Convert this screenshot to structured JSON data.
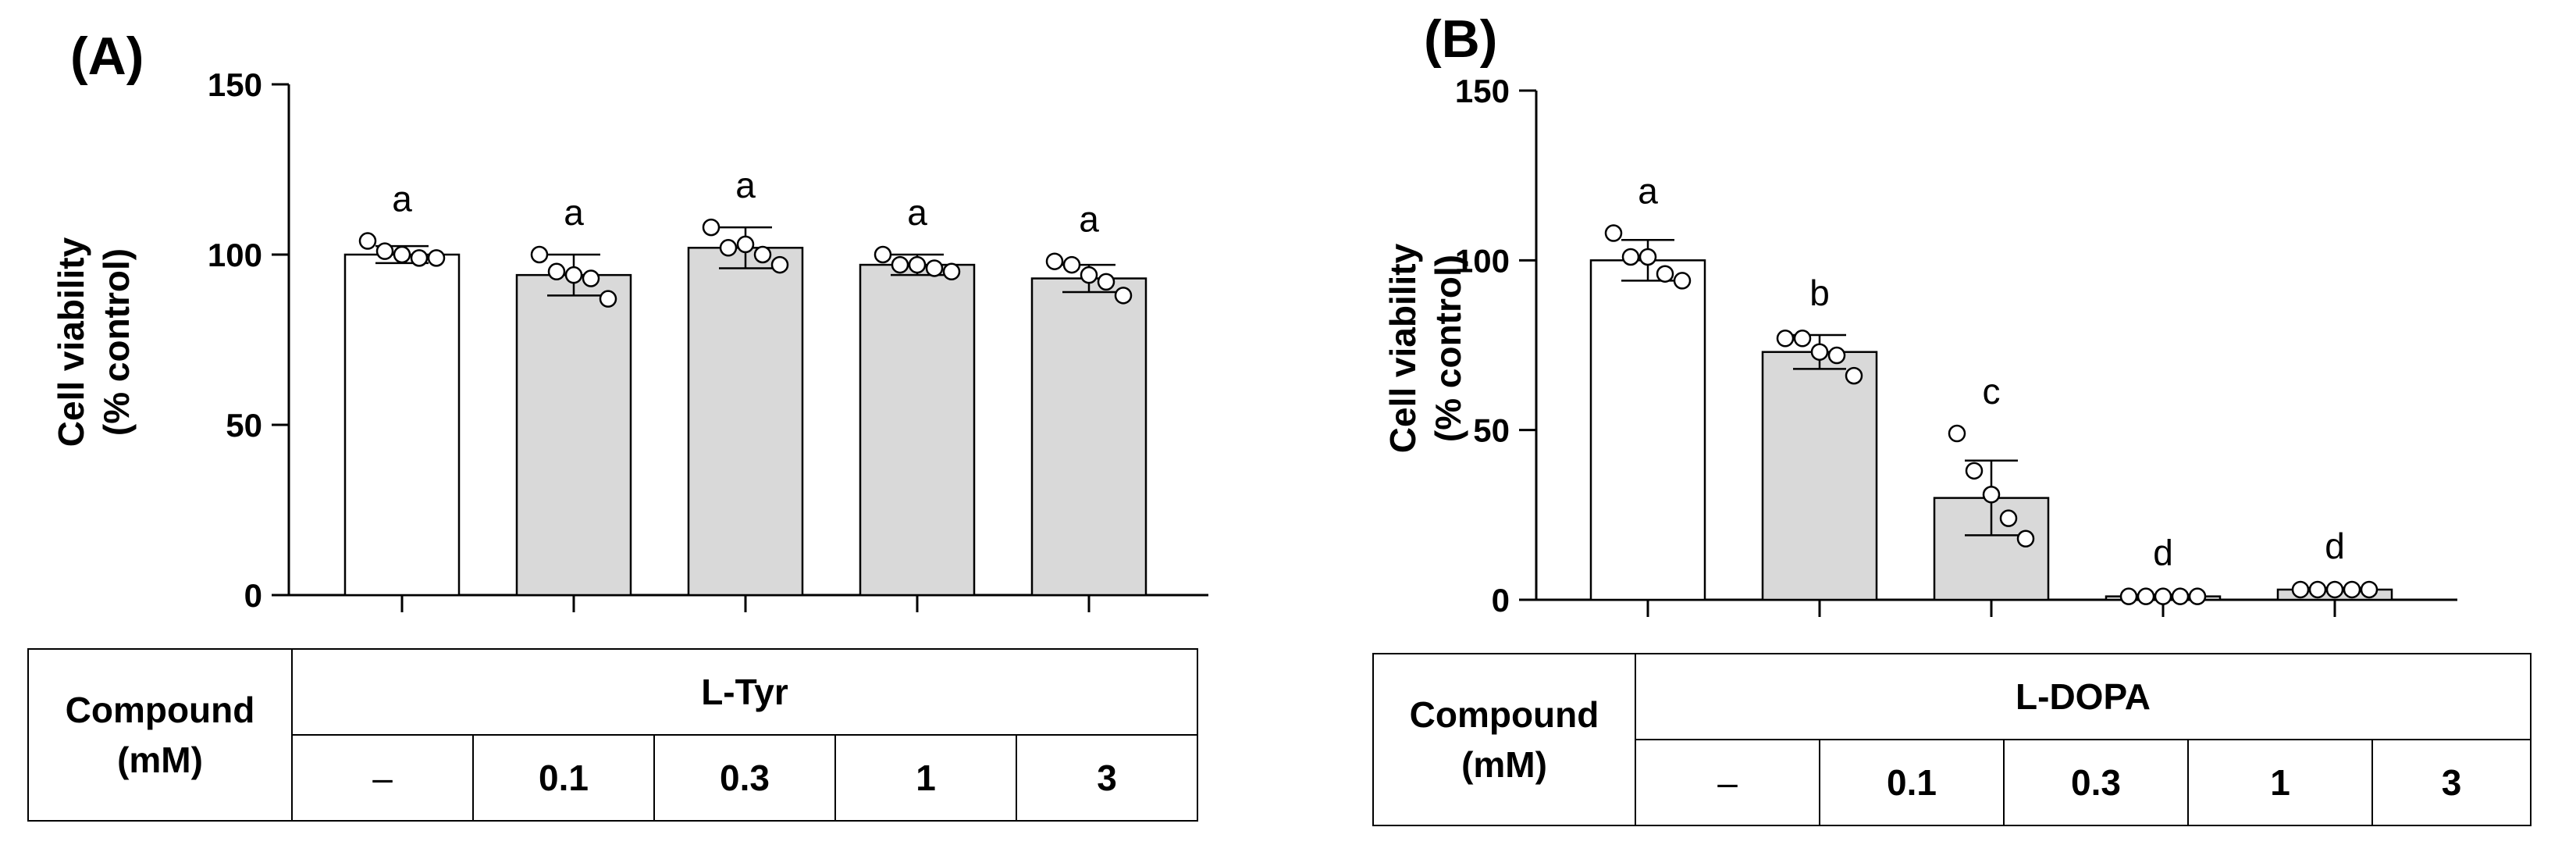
{
  "panels": [
    {
      "id": "A",
      "letter": "(A)",
      "ylabel_line1": "Cell viability",
      "ylabel_line2": "(% control)",
      "table": {
        "row_header_line1": "Compound",
        "row_header_line2": "(mM)",
        "compound": "L-Tyr",
        "concentrations": [
          "–",
          "0.1",
          "0.3",
          "1",
          "3"
        ]
      }
    },
    {
      "id": "B",
      "letter": "(B)",
      "ylabel_line1": "Cell viability",
      "ylabel_line2": "(% control)",
      "table": {
        "row_header_line1": "Compound",
        "row_header_line2": "(mM)",
        "compound": "L-DOPA",
        "concentrations": [
          "–",
          "0.1",
          "0.3",
          "1",
          "3"
        ]
      }
    }
  ],
  "colors": {
    "control_bar": "#ffffff",
    "treated_bar": "#d9d9d9",
    "stroke": "#000000"
  },
  "chart_data": [
    {
      "type": "bar",
      "panel": "A",
      "title": "(A)",
      "xlabel": "Compound (mM)",
      "ylabel": "Cell viability (% control)",
      "ylim": [
        0,
        150
      ],
      "yticks": [
        0,
        50,
        100,
        150
      ],
      "categories": [
        "–",
        "0.1",
        "0.3",
        "1",
        "3"
      ],
      "values": [
        100,
        94,
        102,
        97,
        93
      ],
      "errors": [
        2.5,
        6,
        6,
        3,
        4
      ],
      "significance": [
        "a",
        "a",
        "a",
        "a",
        "a"
      ],
      "points": [
        [
          104,
          101,
          100,
          99,
          99
        ],
        [
          100,
          95,
          94,
          93,
          87
        ],
        [
          108,
          102,
          103,
          100,
          97
        ],
        [
          100,
          97,
          97,
          96,
          95
        ],
        [
          98,
          97,
          94,
          92,
          88
        ]
      ],
      "bar_fill": [
        "control",
        "treated",
        "treated",
        "treated",
        "treated"
      ]
    },
    {
      "type": "bar",
      "panel": "B",
      "title": "(B)",
      "xlabel": "Compound (mM)",
      "ylabel": "Cell viability (% control)",
      "ylim": [
        0,
        150
      ],
      "yticks": [
        0,
        50,
        100,
        150
      ],
      "categories": [
        "–",
        "0.1",
        "0.3",
        "1",
        "3"
      ],
      "values": [
        100,
        73,
        30,
        1,
        3
      ],
      "errors": [
        6,
        5,
        11,
        0.5,
        0.5
      ],
      "significance": [
        "a",
        "b",
        "c",
        "d",
        "d"
      ],
      "points": [
        [
          108,
          101,
          101,
          96,
          94
        ],
        [
          77,
          77,
          73,
          72,
          66
        ],
        [
          49,
          38,
          31,
          24,
          18
        ],
        [
          1,
          1,
          1,
          1,
          1
        ],
        [
          3,
          3,
          3,
          3,
          3
        ]
      ],
      "bar_fill": [
        "control",
        "treated",
        "treated",
        "treated",
        "treated"
      ]
    }
  ]
}
